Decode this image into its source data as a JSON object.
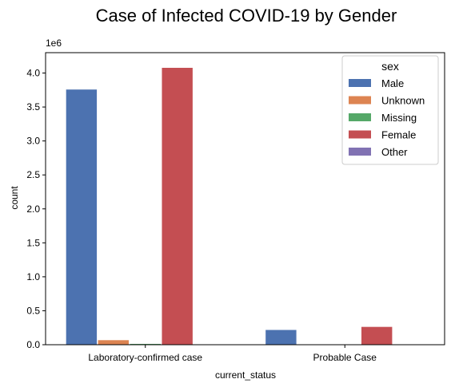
{
  "chart_data": {
    "type": "bar",
    "title": "Case of Infected COVID-19 by Gender",
    "xlabel": "current_status",
    "ylabel": "count",
    "y_multiplier_label": "1e6",
    "categories": [
      "Laboratory-confirmed case",
      "Probable Case"
    ],
    "series": [
      {
        "name": "Male",
        "color": "#4c72b0",
        "values": [
          3760000,
          220000
        ]
      },
      {
        "name": "Unknown",
        "color": "#dd8452",
        "values": [
          70000,
          4000
        ]
      },
      {
        "name": "Missing",
        "color": "#55a868",
        "values": [
          15000,
          2000
        ]
      },
      {
        "name": "Female",
        "color": "#c44e52",
        "values": [
          4080000,
          265000
        ]
      },
      {
        "name": "Other",
        "color": "#8172b3",
        "values": [
          500,
          100
        ]
      }
    ],
    "ylim": [
      0,
      4300000
    ],
    "yticks": [
      0,
      500000,
      1000000,
      1500000,
      2000000,
      2500000,
      3000000,
      3500000,
      4000000
    ],
    "ytick_labels": [
      "0.0",
      "0.5",
      "1.0",
      "1.5",
      "2.0",
      "2.5",
      "3.0",
      "3.5",
      "4.0"
    ],
    "legend": {
      "title": "sex",
      "placement": "top-right"
    },
    "grid": false
  }
}
